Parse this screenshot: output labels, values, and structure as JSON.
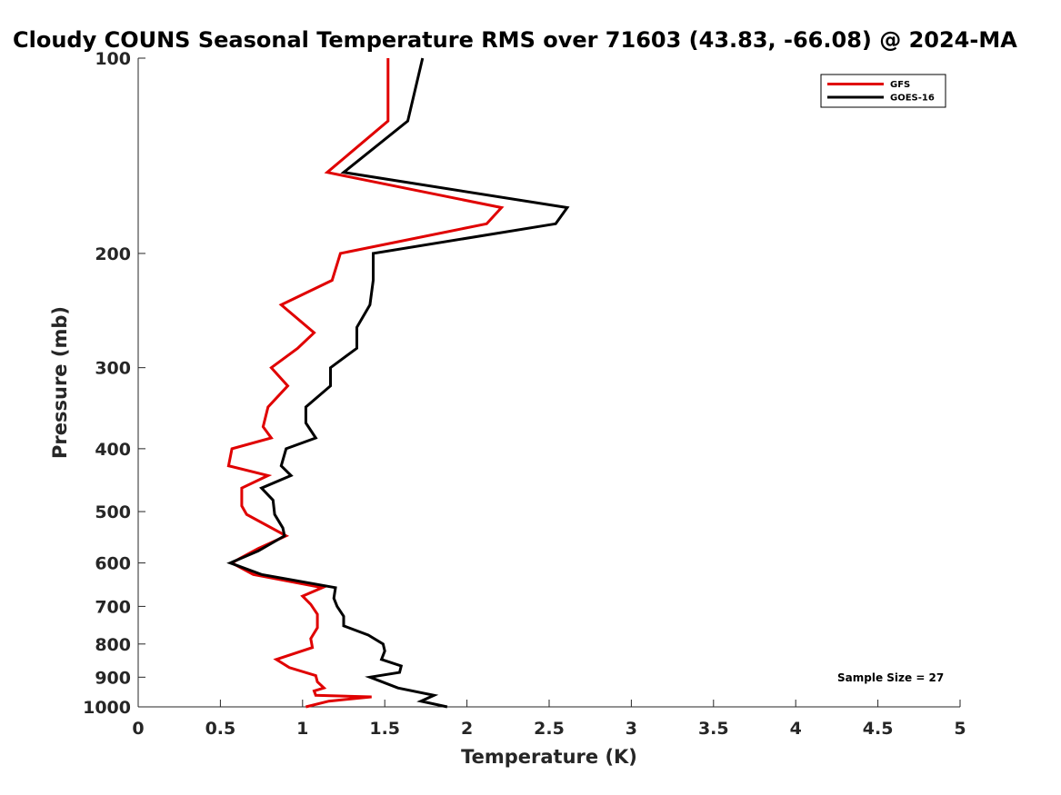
{
  "chart_data": {
    "type": "line",
    "title": "Cloudy COUNS Seasonal Temperature RMS over 71603 (43.83, -66.08) @ 2024-MA",
    "xlabel": "Temperature (K)",
    "ylabel": "Pressure (mb)",
    "xlim": [
      0,
      5
    ],
    "ylim": [
      100,
      1000
    ],
    "y_scale": "log",
    "y_reversed": true,
    "x_ticks": [
      0,
      0.5,
      1,
      1.5,
      2,
      2.5,
      3,
      3.5,
      4,
      4.5,
      5
    ],
    "x_tick_labels": [
      "0",
      "0.5",
      "1",
      "1.5",
      "2",
      "2.5",
      "3",
      "3.5",
      "4",
      "4.5",
      "5"
    ],
    "y_ticks": [
      100,
      200,
      300,
      400,
      500,
      600,
      700,
      800,
      900,
      1000
    ],
    "y_tick_labels": [
      "100",
      "200",
      "300",
      "400",
      "500",
      "600",
      "700",
      "800",
      "900",
      "1000"
    ],
    "legend_position": "top-right",
    "annotation": "Sample Size = 27",
    "series": [
      {
        "name": "GFS",
        "color": "#e00000",
        "points": [
          [
            1.52,
            100
          ],
          [
            1.52,
            125
          ],
          [
            1.15,
            150
          ],
          [
            2.21,
            170
          ],
          [
            2.12,
            180
          ],
          [
            1.23,
            200
          ],
          [
            1.18,
            220
          ],
          [
            0.87,
            240
          ],
          [
            1.07,
            265
          ],
          [
            0.97,
            280
          ],
          [
            0.81,
            300
          ],
          [
            0.91,
            320
          ],
          [
            0.79,
            345
          ],
          [
            0.76,
            370
          ],
          [
            0.81,
            385
          ],
          [
            0.57,
            400
          ],
          [
            0.55,
            425
          ],
          [
            0.79,
            440
          ],
          [
            0.63,
            460
          ],
          [
            0.63,
            490
          ],
          [
            0.66,
            505
          ],
          [
            0.9,
            545
          ],
          [
            0.73,
            570
          ],
          [
            0.62,
            590
          ],
          [
            0.57,
            600
          ],
          [
            0.7,
            625
          ],
          [
            1.12,
            655
          ],
          [
            1.0,
            675
          ],
          [
            1.05,
            695
          ],
          [
            1.09,
            720
          ],
          [
            1.09,
            755
          ],
          [
            1.05,
            785
          ],
          [
            1.06,
            810
          ],
          [
            0.84,
            845
          ],
          [
            0.92,
            870
          ],
          [
            1.08,
            895
          ],
          [
            1.09,
            915
          ],
          [
            1.13,
            935
          ],
          [
            1.07,
            945
          ],
          [
            1.08,
            960
          ],
          [
            1.42,
            965
          ],
          [
            1.16,
            980
          ],
          [
            1.02,
            1000
          ]
        ]
      },
      {
        "name": "GOES-16",
        "color": "#000000",
        "points": [
          [
            1.73,
            100
          ],
          [
            1.64,
            125
          ],
          [
            1.25,
            150
          ],
          [
            2.61,
            170
          ],
          [
            2.54,
            180
          ],
          [
            1.43,
            200
          ],
          [
            1.43,
            220
          ],
          [
            1.41,
            240
          ],
          [
            1.33,
            260
          ],
          [
            1.33,
            280
          ],
          [
            1.17,
            300
          ],
          [
            1.17,
            320
          ],
          [
            1.02,
            345
          ],
          [
            1.02,
            365
          ],
          [
            1.08,
            385
          ],
          [
            0.9,
            400
          ],
          [
            0.87,
            425
          ],
          [
            0.93,
            440
          ],
          [
            0.75,
            460
          ],
          [
            0.82,
            480
          ],
          [
            0.83,
            505
          ],
          [
            0.88,
            530
          ],
          [
            0.89,
            545
          ],
          [
            0.73,
            575
          ],
          [
            0.56,
            600
          ],
          [
            0.75,
            625
          ],
          [
            1.2,
            655
          ],
          [
            1.19,
            680
          ],
          [
            1.21,
            700
          ],
          [
            1.25,
            725
          ],
          [
            1.25,
            750
          ],
          [
            1.4,
            775
          ],
          [
            1.49,
            800
          ],
          [
            1.5,
            820
          ],
          [
            1.48,
            845
          ],
          [
            1.6,
            865
          ],
          [
            1.59,
            885
          ],
          [
            1.41,
            900
          ],
          [
            1.58,
            935
          ],
          [
            1.8,
            960
          ],
          [
            1.72,
            980
          ],
          [
            1.88,
            1000
          ]
        ]
      }
    ]
  }
}
